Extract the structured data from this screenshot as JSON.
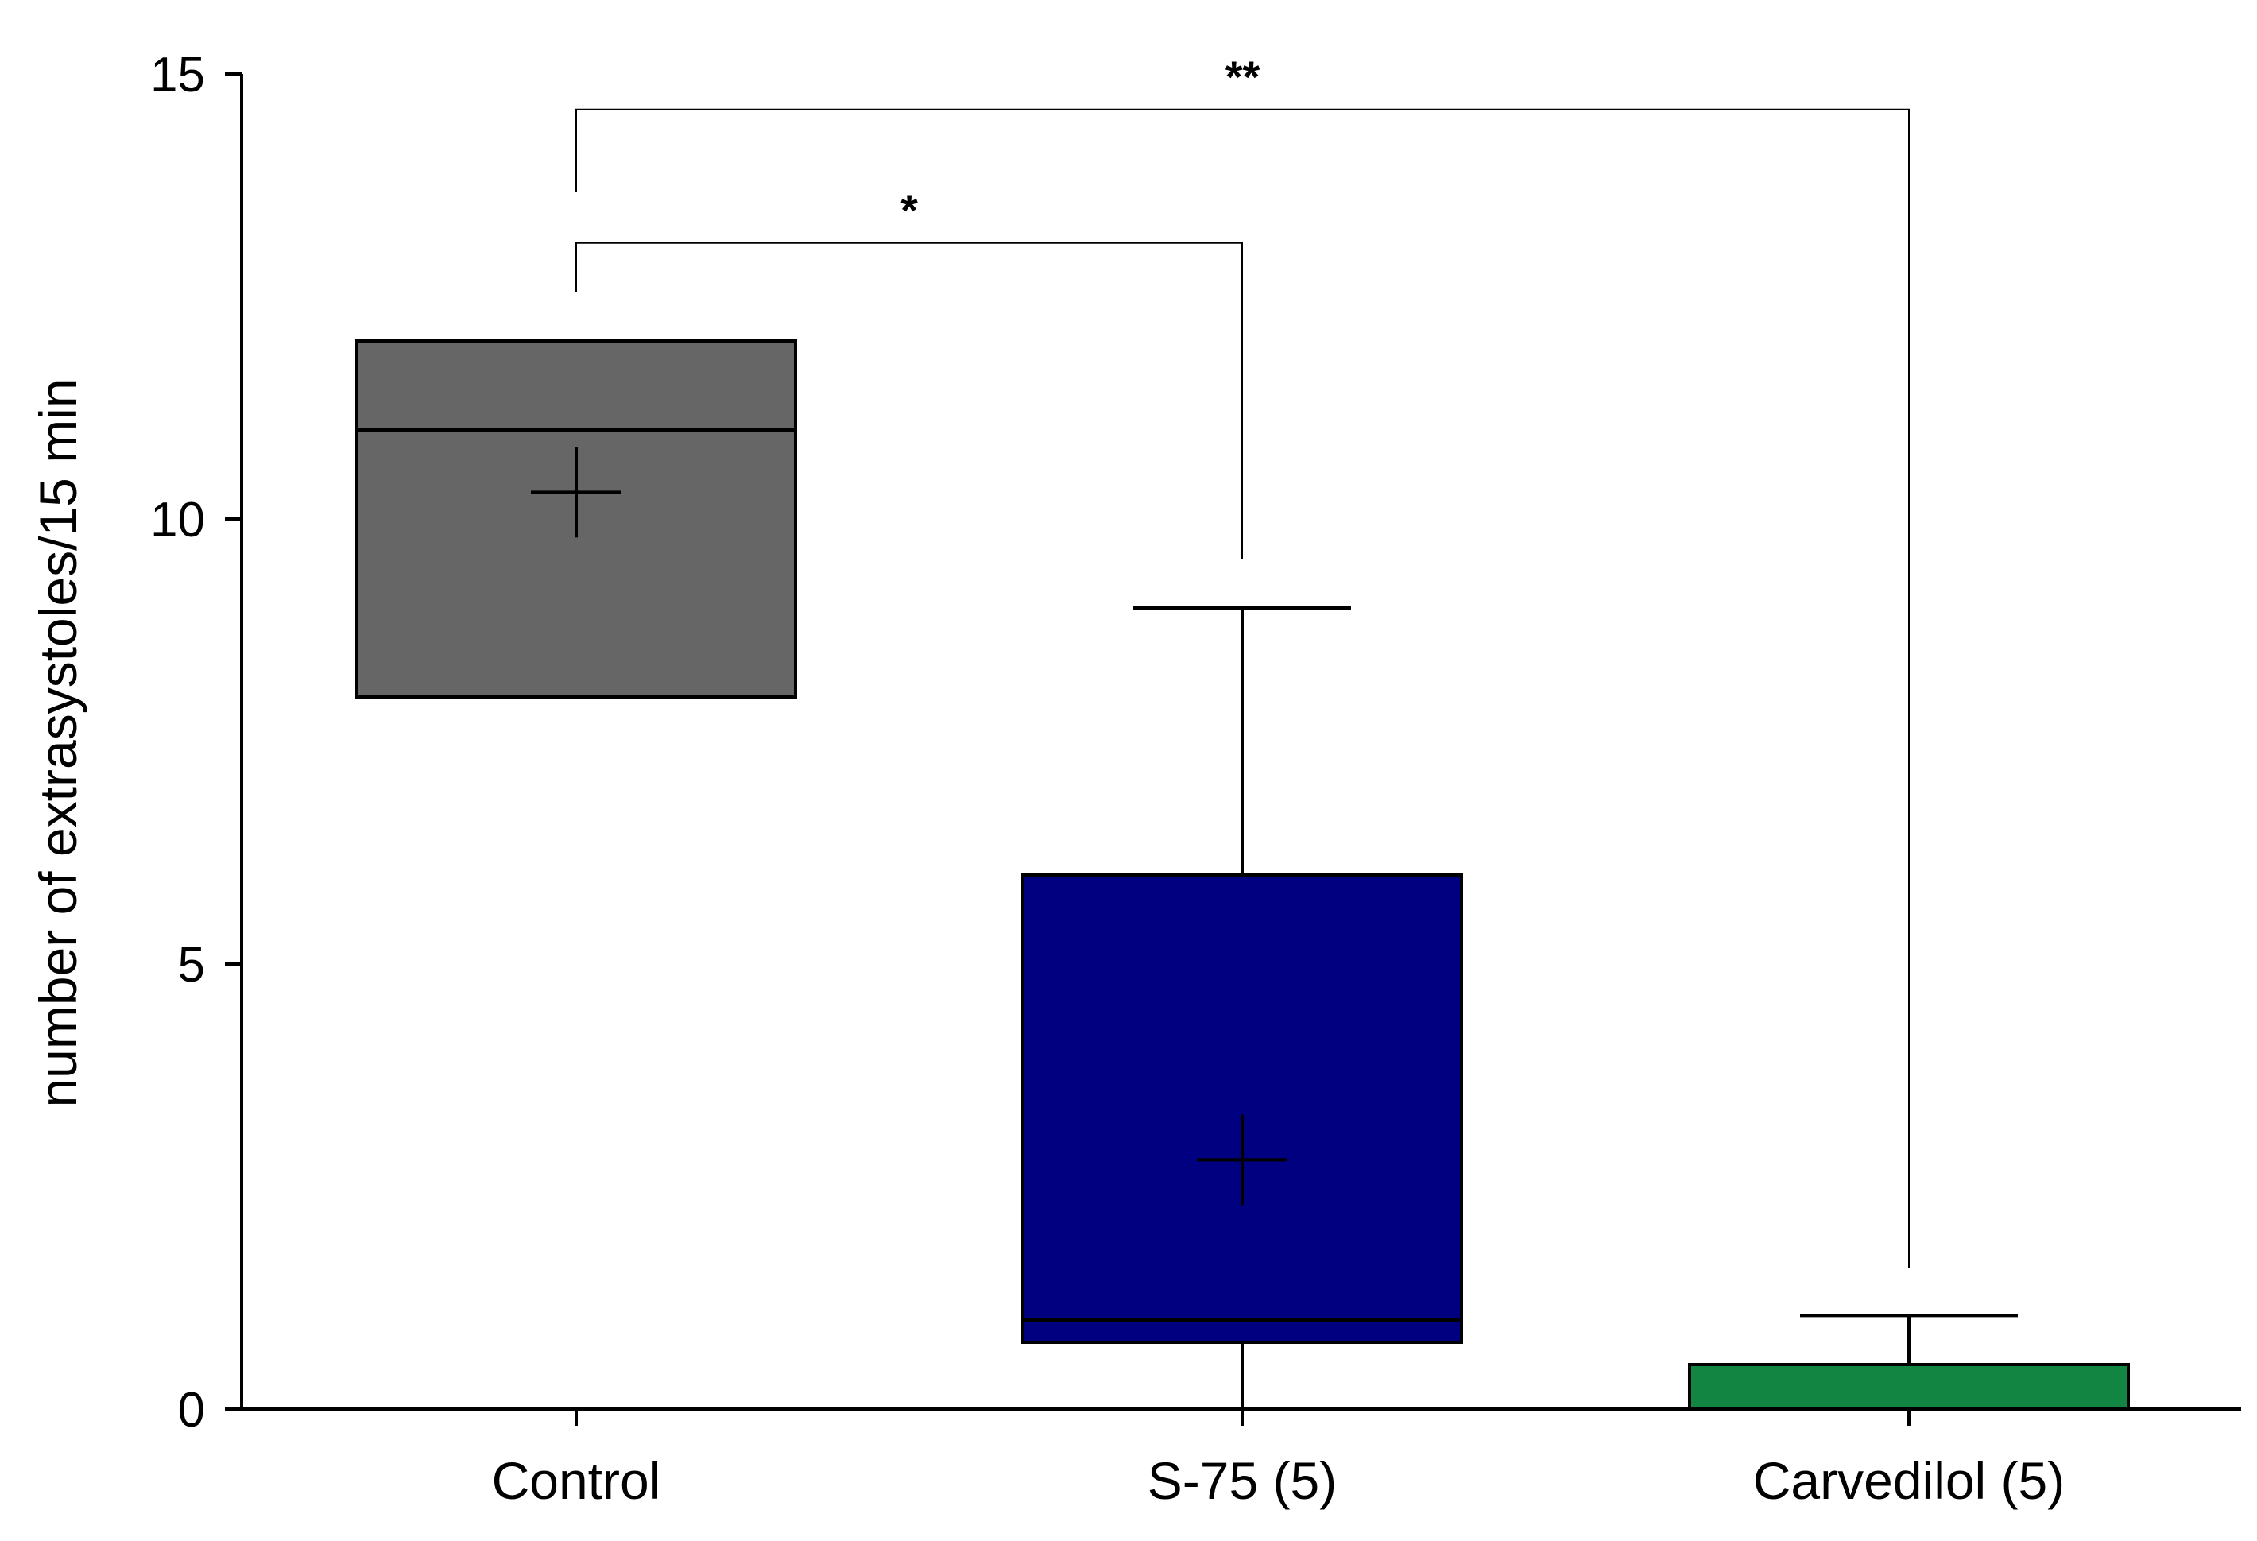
{
  "chart_data": {
    "type": "box",
    "ylabel": "number of extrasystoles/15 min",
    "xlabel": "",
    "title": "",
    "ylim": [
      0,
      15
    ],
    "yticks": [
      "0",
      "5",
      "10",
      "15"
    ],
    "categories": [
      "Control",
      "S-75 (5)",
      "Carvedilol (5)"
    ],
    "colors": [
      "#666666",
      "#000080",
      "#138543"
    ],
    "boxes": [
      {
        "label": "Control",
        "q1": 8,
        "median": 11,
        "q3": 12,
        "whisker_low": null,
        "whisker_high": null,
        "mean": 10.3
      },
      {
        "label": "S-75 (5)",
        "q1": 0.75,
        "median": 1,
        "q3": 6,
        "whisker_low": 0,
        "whisker_high": 9,
        "mean": 2.8
      },
      {
        "label": "Carvedilol (5)",
        "q1": 0,
        "median": 0,
        "q3": 0.5,
        "whisker_low": 0,
        "whisker_high": 1.05,
        "mean": null
      }
    ],
    "significance": [
      {
        "from": 0,
        "to": 1,
        "label": "*",
        "level": 13.1
      },
      {
        "from": 0,
        "to": 2,
        "label": "**",
        "level": 14.6
      }
    ],
    "grid": false,
    "legend": "none"
  }
}
